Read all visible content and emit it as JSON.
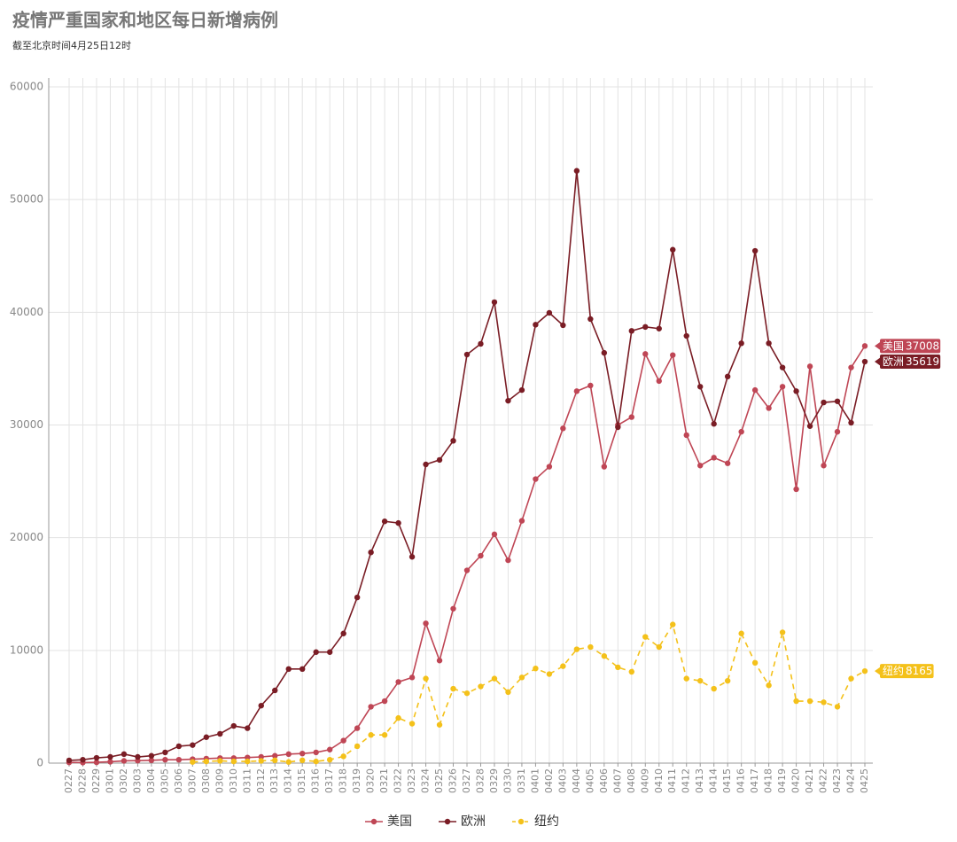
{
  "chart_data": {
    "type": "line",
    "title": "疫情严重国家和地区每日新增病例",
    "subtitle": "截至北京时间4月25日12时",
    "categories": [
      "0227",
      "0228",
      "0229",
      "0301",
      "0302",
      "0303",
      "0304",
      "0305",
      "0306",
      "0307",
      "0308",
      "0309",
      "0310",
      "0311",
      "0312",
      "0313",
      "0314",
      "0315",
      "0316",
      "0317",
      "0318",
      "0319",
      "0320",
      "0321",
      "0322",
      "0323",
      "0324",
      "0325",
      "0326",
      "0327",
      "0328",
      "0329",
      "0330",
      "0331",
      "0401",
      "0402",
      "0403",
      "0404",
      "0405",
      "0406",
      "0407",
      "0408",
      "0409",
      "0410",
      "0411",
      "0412",
      "0413",
      "0414",
      "0415",
      "0416",
      "0417",
      "0418",
      "0419",
      "0420",
      "0421",
      "0422",
      "0423",
      "0424",
      "0425"
    ],
    "series": [
      {
        "name": "美国",
        "color": "#bf4655",
        "line_style": "solid",
        "values": [
          60,
          50,
          70,
          120,
          200,
          220,
          250,
          300,
          300,
          350,
          400,
          450,
          450,
          500,
          550,
          650,
          800,
          850,
          950,
          1200,
          2000,
          3100,
          5000,
          5500,
          7200,
          7600,
          12400,
          9100,
          13700,
          17100,
          18400,
          20300,
          18000,
          21500,
          25200,
          26300,
          29700,
          33000,
          33500,
          26300,
          30000,
          30700,
          36300,
          33900,
          36200,
          29100,
          26400,
          27100,
          26600,
          29400,
          33100,
          31500,
          33400,
          24300,
          35200,
          26400,
          29400,
          35100,
          37008
        ]
      },
      {
        "name": "欧洲",
        "color": "#7a1d25",
        "line_style": "solid",
        "values": [
          240,
          300,
          470,
          550,
          800,
          550,
          650,
          950,
          1500,
          1600,
          2300,
          2600,
          3300,
          3100,
          5100,
          6450,
          8350,
          8350,
          9850,
          9850,
          11500,
          14700,
          18700,
          21450,
          21300,
          18300,
          26500,
          26900,
          28600,
          36250,
          37200,
          40900,
          32150,
          33100,
          38900,
          39950,
          38850,
          52550,
          39400,
          36400,
          29800,
          38350,
          38700,
          38550,
          45550,
          37900,
          33400,
          30100,
          34300,
          37250,
          45450,
          37250,
          35100,
          33000,
          29900,
          32000,
          32100,
          30200,
          35619
        ]
      },
      {
        "name": "纽约",
        "color": "#f4c11a",
        "line_style": "dashed",
        "values": [
          null,
          null,
          null,
          null,
          null,
          null,
          null,
          null,
          null,
          100,
          150,
          200,
          150,
          150,
          200,
          250,
          100,
          250,
          150,
          300,
          600,
          1500,
          2500,
          2500,
          4000,
          3500,
          7500,
          3400,
          6600,
          6200,
          6800,
          7500,
          6300,
          7600,
          8400,
          7900,
          8600,
          10100,
          10300,
          9500,
          8500,
          8100,
          11200,
          10300,
          12300,
          7500,
          7300,
          6600,
          7300,
          11500,
          8900,
          6900,
          11600,
          5500,
          5500,
          5400,
          5000,
          7500,
          8165
        ]
      }
    ],
    "ylim": [
      0,
      60000
    ],
    "yticks": [
      0,
      10000,
      20000,
      30000,
      40000,
      50000,
      60000
    ],
    "grid": true,
    "legend": "bottom"
  }
}
